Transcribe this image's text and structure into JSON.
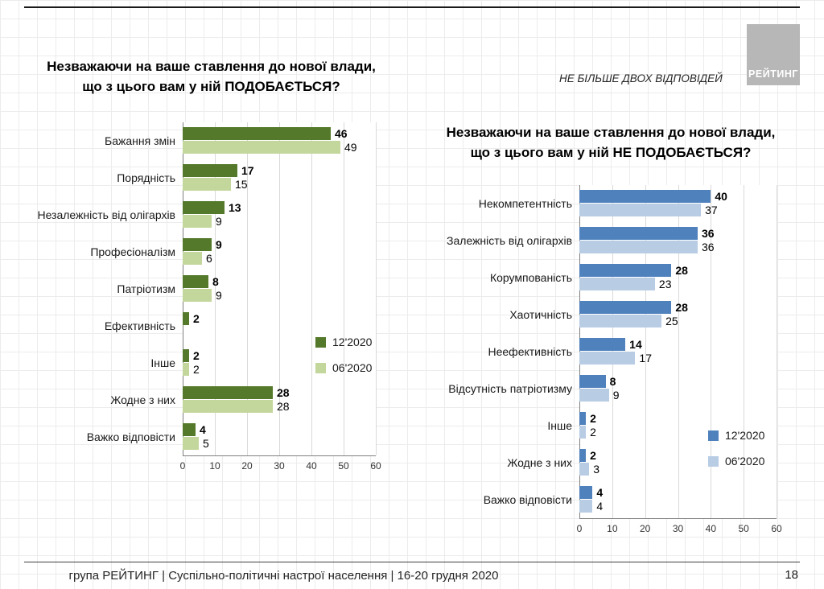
{
  "page": {
    "note": "НЕ БІЛЬШЕ ДВОХ ВІДПОВІДЕЙ",
    "logo": "РЕЙТИНГ",
    "footer": "група РЕЙТИНГ | Суспільно-політичні настрої населення | 16-20 грудня 2020",
    "page_number": "18"
  },
  "chart_data": [
    {
      "type": "bar",
      "orientation": "horizontal",
      "title_lines": [
        "Незважаючи на ваше ставлення до нової влади,",
        "що з цього вам у ній ПОДОБАЄТЬСЯ?"
      ],
      "categories": [
        "Бажання змін",
        "Порядність",
        "Незалежність від олігархів",
        "Професіоналізм",
        "Патріотизм",
        "Ефективність",
        "Інше",
        "Жодне з них",
        "Важко відповісти"
      ],
      "series": [
        {
          "name": "12'2020",
          "color": "#54792a",
          "values": [
            46,
            17,
            13,
            9,
            8,
            2,
            2,
            28,
            4
          ]
        },
        {
          "name": "06'2020",
          "color": "#c3d69b",
          "values": [
            49,
            15,
            9,
            6,
            9,
            null,
            2,
            28,
            5
          ]
        }
      ],
      "xlim": [
        0,
        60
      ],
      "ticks": [
        0,
        10,
        20,
        30,
        40,
        50,
        60
      ],
      "grid": true,
      "legend_position": "inside-right"
    },
    {
      "type": "bar",
      "orientation": "horizontal",
      "title_lines": [
        "Незважаючи на ваше ставлення до нової влади,",
        "що з цього вам у ній НЕ ПОДОБАЄТЬСЯ?"
      ],
      "categories": [
        "Некомпетентність",
        "Залежність від олігархів",
        "Корумпованість",
        "Хаотичність",
        "Неефективність",
        "Відсутність патріотизму",
        "Інше",
        "Жодне з них",
        "Важко відповісти"
      ],
      "series": [
        {
          "name": "12'2020",
          "color": "#4f81bd",
          "values": [
            40,
            36,
            28,
            28,
            14,
            8,
            2,
            2,
            4
          ]
        },
        {
          "name": "06'2020",
          "color": "#b8cce4",
          "values": [
            37,
            36,
            23,
            25,
            17,
            9,
            2,
            3,
            4
          ]
        }
      ],
      "xlim": [
        0,
        60
      ],
      "ticks": [
        0,
        10,
        20,
        30,
        40,
        50,
        60
      ],
      "grid": true,
      "legend_position": "inside-right"
    }
  ]
}
